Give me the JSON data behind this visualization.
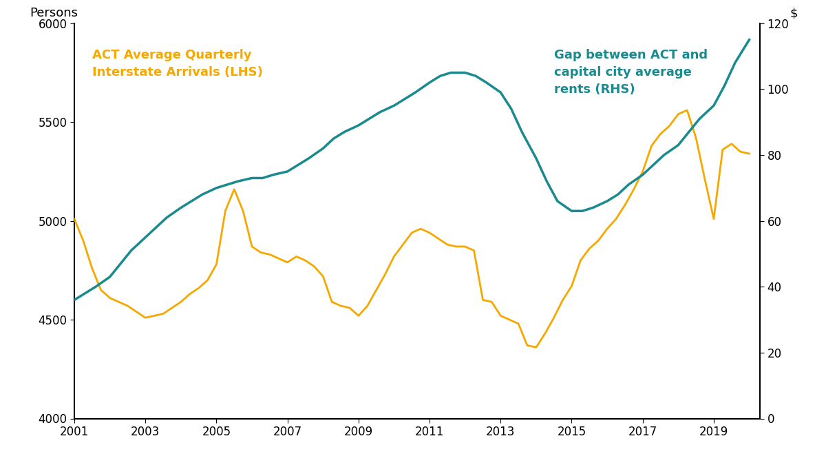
{
  "lhs_label": "Persons",
  "rhs_label": "$",
  "lhs_legend": "ACT Average Quarterly\nInterstate Arrivals (LHS)",
  "rhs_legend": "Gap between ACT and\ncapital city average\nrents (RHS)",
  "lhs_color": "#F5A800",
  "rhs_color": "#1A8A8F",
  "lhs_ylim": [
    4000,
    6000
  ],
  "rhs_ylim": [
    0,
    120
  ],
  "lhs_yticks": [
    4000,
    4500,
    5000,
    5500,
    6000
  ],
  "rhs_yticks": [
    0,
    20,
    40,
    60,
    80,
    100,
    120
  ],
  "xticks": [
    2001,
    2003,
    2005,
    2007,
    2009,
    2011,
    2013,
    2015,
    2017,
    2019
  ],
  "xlim": [
    2001,
    2020.3
  ],
  "arrivals_x": [
    2001.0,
    2001.25,
    2001.5,
    2001.75,
    2002.0,
    2002.25,
    2002.5,
    2002.75,
    2003.0,
    2003.25,
    2003.5,
    2003.75,
    2004.0,
    2004.25,
    2004.5,
    2004.75,
    2005.0,
    2005.25,
    2005.5,
    2005.75,
    2006.0,
    2006.25,
    2006.5,
    2006.75,
    2007.0,
    2007.25,
    2007.5,
    2007.75,
    2008.0,
    2008.25,
    2008.5,
    2008.75,
    2009.0,
    2009.25,
    2009.5,
    2009.75,
    2010.0,
    2010.25,
    2010.5,
    2010.75,
    2011.0,
    2011.25,
    2011.5,
    2011.75,
    2012.0,
    2012.25,
    2012.5,
    2012.75,
    2013.0,
    2013.25,
    2013.5,
    2013.75,
    2014.0,
    2014.25,
    2014.5,
    2014.75,
    2015.0,
    2015.25,
    2015.5,
    2015.75,
    2016.0,
    2016.25,
    2016.5,
    2016.75,
    2017.0,
    2017.25,
    2017.5,
    2017.75,
    2018.0,
    2018.25,
    2018.5,
    2018.75,
    2019.0,
    2019.25,
    2019.5,
    2019.75,
    2020.0
  ],
  "arrivals_y": [
    5010,
    4900,
    4760,
    4650,
    4610,
    4590,
    4570,
    4540,
    4510,
    4520,
    4530,
    4560,
    4590,
    4630,
    4660,
    4700,
    4780,
    5050,
    5160,
    5050,
    4870,
    4840,
    4830,
    4810,
    4790,
    4820,
    4800,
    4770,
    4720,
    4590,
    4570,
    4560,
    4520,
    4570,
    4650,
    4730,
    4820,
    4880,
    4940,
    4960,
    4940,
    4910,
    4880,
    4870,
    4870,
    4850,
    4600,
    4590,
    4520,
    4500,
    4480,
    4370,
    4360,
    4430,
    4510,
    4600,
    4670,
    4800,
    4860,
    4900,
    4960,
    5010,
    5080,
    5160,
    5250,
    5380,
    5440,
    5480,
    5540,
    5560,
    5420,
    5210,
    5010,
    5360,
    5390,
    5350,
    5340
  ],
  "gap_x": [
    2001.0,
    2001.3,
    2001.6,
    2002.0,
    2002.3,
    2002.6,
    2003.0,
    2003.3,
    2003.6,
    2004.0,
    2004.3,
    2004.6,
    2005.0,
    2005.3,
    2005.6,
    2006.0,
    2006.3,
    2006.6,
    2007.0,
    2007.3,
    2007.6,
    2008.0,
    2008.3,
    2008.6,
    2009.0,
    2009.3,
    2009.6,
    2010.0,
    2010.3,
    2010.6,
    2011.0,
    2011.3,
    2011.6,
    2012.0,
    2012.3,
    2012.6,
    2013.0,
    2013.3,
    2013.6,
    2014.0,
    2014.3,
    2014.6,
    2015.0,
    2015.3,
    2015.6,
    2016.0,
    2016.3,
    2016.6,
    2017.0,
    2017.3,
    2017.6,
    2018.0,
    2018.3,
    2018.6,
    2019.0,
    2019.3,
    2019.6,
    2020.0
  ],
  "gap_y": [
    36,
    38,
    40,
    43,
    47,
    51,
    55,
    58,
    61,
    64,
    66,
    68,
    70,
    71,
    72,
    73,
    73,
    74,
    75,
    77,
    79,
    82,
    85,
    87,
    89,
    91,
    93,
    95,
    97,
    99,
    102,
    104,
    105,
    105,
    104,
    102,
    99,
    94,
    87,
    79,
    72,
    66,
    63,
    63,
    64,
    66,
    68,
    71,
    74,
    77,
    80,
    83,
    87,
    91,
    95,
    101,
    108,
    115
  ]
}
